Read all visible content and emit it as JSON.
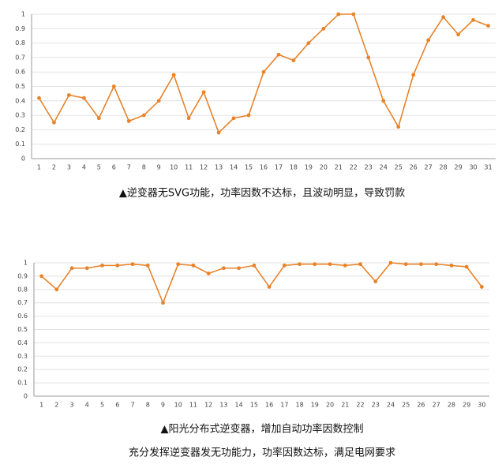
{
  "chart_data": [
    {
      "type": "line",
      "captions": [
        "▲逆变器无SVG功能，功率因数不达标，且波动明显，导致罚款"
      ],
      "categories": [
        "1",
        "2",
        "3",
        "4",
        "5",
        "6",
        "7",
        "8",
        "9",
        "10",
        "11",
        "12",
        "13",
        "14",
        "15",
        "16",
        "17",
        "18",
        "19",
        "20",
        "21",
        "22",
        "23",
        "24",
        "25",
        "26",
        "27",
        "28",
        "29",
        "30",
        "31"
      ],
      "values": [
        0.42,
        0.25,
        0.44,
        0.42,
        0.28,
        0.5,
        0.26,
        0.3,
        0.4,
        0.58,
        0.28,
        0.46,
        0.18,
        0.28,
        0.3,
        0.6,
        0.72,
        0.68,
        0.8,
        0.9,
        1,
        1,
        0.7,
        0.4,
        0.22,
        0.58,
        0.82,
        0.98,
        0.86,
        0.96,
        0.92
      ],
      "color": "#e8832a",
      "ylim": [
        0,
        1
      ],
      "yticks": [
        0,
        0.1,
        0.2,
        0.3,
        0.4,
        0.5,
        0.6,
        0.7,
        0.8,
        0.9,
        1
      ],
      "grid": true
    },
    {
      "type": "line",
      "captions": [
        "▲阳光分布式逆变器，增加自动功率因数控制",
        "充分发挥逆变器发无功能力，功率因数达标，满足电网要求"
      ],
      "categories": [
        "1",
        "2",
        "3",
        "4",
        "5",
        "6",
        "7",
        "8",
        "9",
        "10",
        "11",
        "12",
        "13",
        "14",
        "15",
        "16",
        "17",
        "18",
        "19",
        "20",
        "21",
        "22",
        "23",
        "24",
        "25",
        "26",
        "27",
        "28",
        "29",
        "30"
      ],
      "values": [
        0.9,
        0.8,
        0.96,
        0.96,
        0.98,
        0.98,
        0.99,
        0.98,
        0.7,
        0.99,
        0.98,
        0.92,
        0.96,
        0.96,
        0.98,
        0.82,
        0.98,
        0.99,
        0.99,
        0.99,
        0.98,
        0.99,
        0.86,
        1,
        0.99,
        0.99,
        0.99,
        0.98,
        0.97,
        0.82
      ],
      "color": "#e8832a",
      "ylim": [
        0,
        1
      ],
      "yticks": [
        0,
        0.1,
        0.2,
        0.3,
        0.4,
        0.5,
        0.6,
        0.7,
        0.8,
        0.9,
        1
      ],
      "grid": true
    }
  ]
}
